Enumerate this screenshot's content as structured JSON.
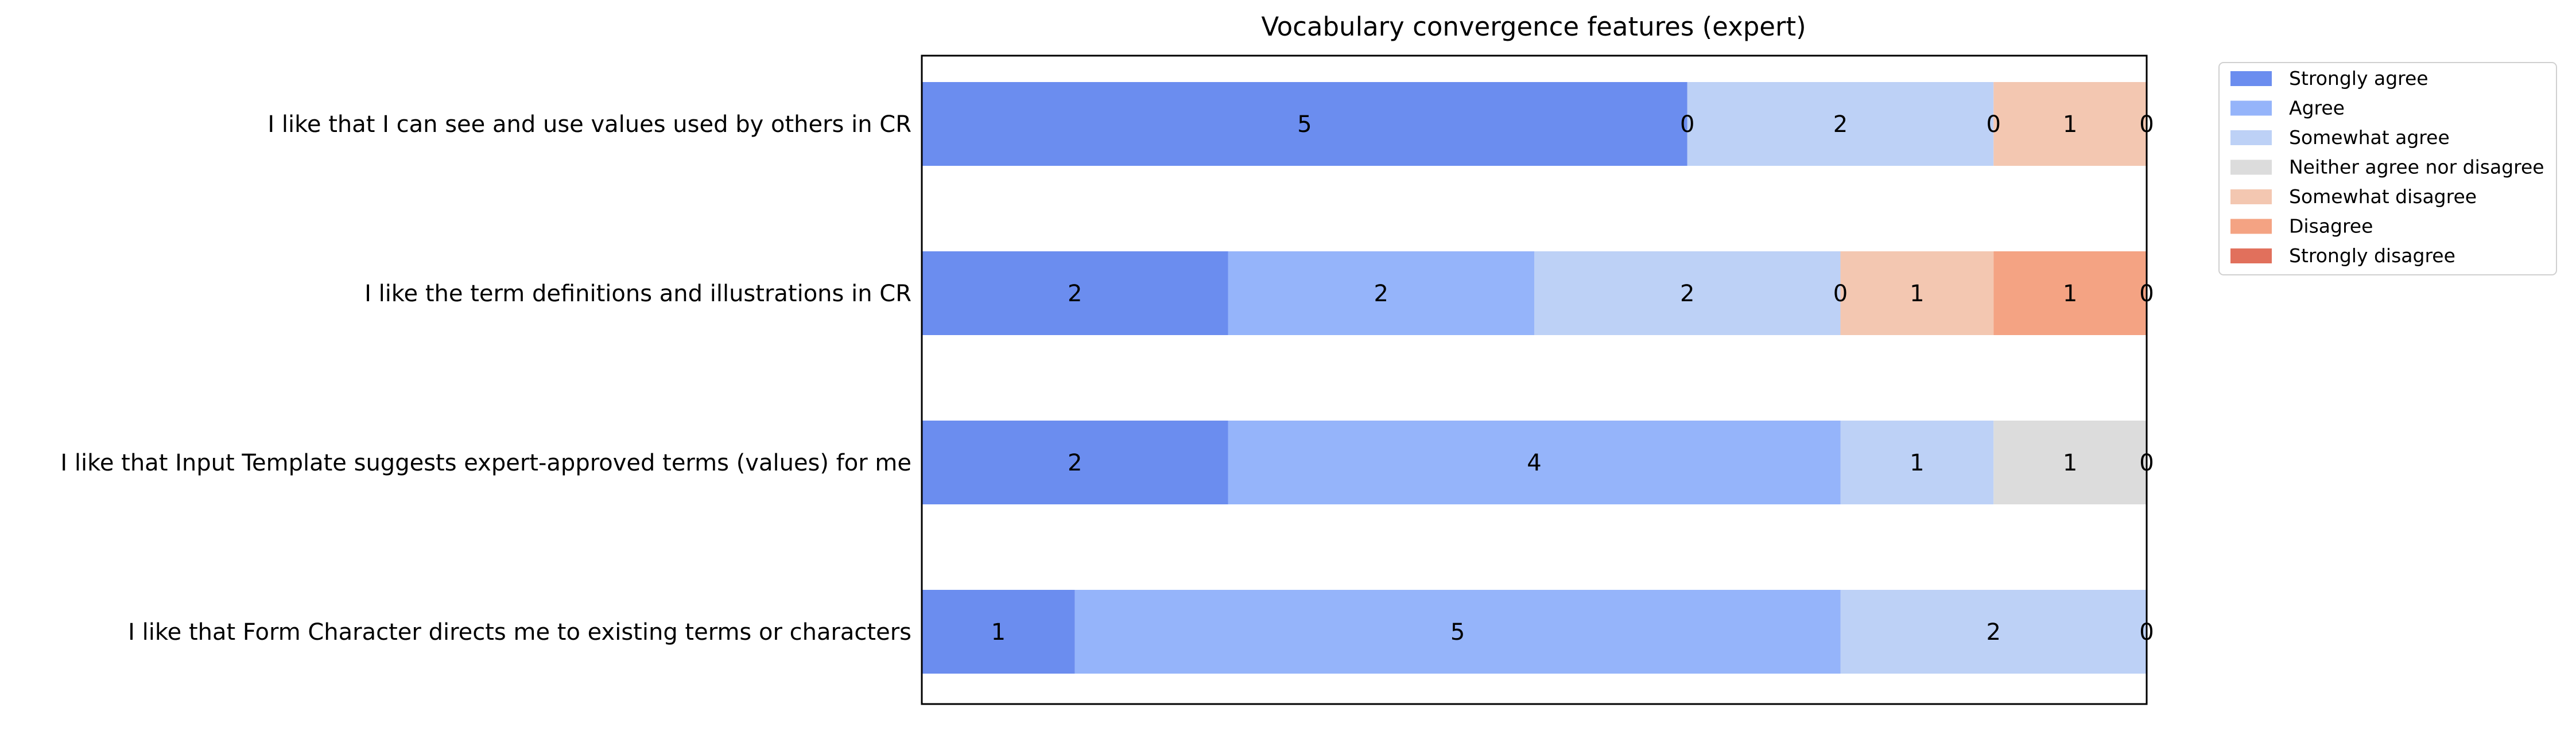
{
  "chart_data": {
    "type": "bar",
    "orientation": "horizontal",
    "stacked": true,
    "title": "Vocabulary convergence features (expert)",
    "xlabel": "",
    "ylabel": "",
    "xlim": [
      0,
      8
    ],
    "x_ticks_visible": false,
    "grid": false,
    "legend_position": "upper-right-outside",
    "categories": [
      "I like that I can see and use values used by others in CR",
      "I like the term definitions and illustrations in CR",
      "I like that Input Template suggests expert-approved terms (values) for me",
      "I like that Form Character directs me to existing terms or characters"
    ],
    "series": [
      {
        "name": "Strongly agree",
        "color": "#6b8def",
        "values": [
          5,
          2,
          2,
          1
        ]
      },
      {
        "name": "Agree",
        "color": "#95b4fa",
        "values": [
          0,
          2,
          4,
          5
        ]
      },
      {
        "name": "Somewhat agree",
        "color": "#bdd1f6",
        "values": [
          2,
          2,
          1,
          2
        ]
      },
      {
        "name": "Neither agree nor disagree",
        "color": "#dcdcdc",
        "values": [
          0,
          0,
          1,
          0
        ]
      },
      {
        "name": "Somewhat disagree",
        "color": "#f3c7b1",
        "values": [
          1,
          1,
          0,
          0
        ]
      },
      {
        "name": "Disagree",
        "color": "#f4a383",
        "values": [
          0,
          1,
          0,
          0
        ]
      },
      {
        "name": "Strongly disagree",
        "color": "#e1705c",
        "values": [
          0,
          0,
          0,
          0
        ]
      }
    ],
    "data_labels": [
      [
        "5",
        "0",
        "2",
        "0",
        "1",
        "0"
      ],
      [
        "2",
        "2",
        "2",
        "0",
        "1",
        "1",
        "0"
      ],
      [
        "2",
        "4",
        "1",
        "1",
        "0"
      ],
      [
        "1",
        "5",
        "2",
        "0"
      ]
    ]
  }
}
